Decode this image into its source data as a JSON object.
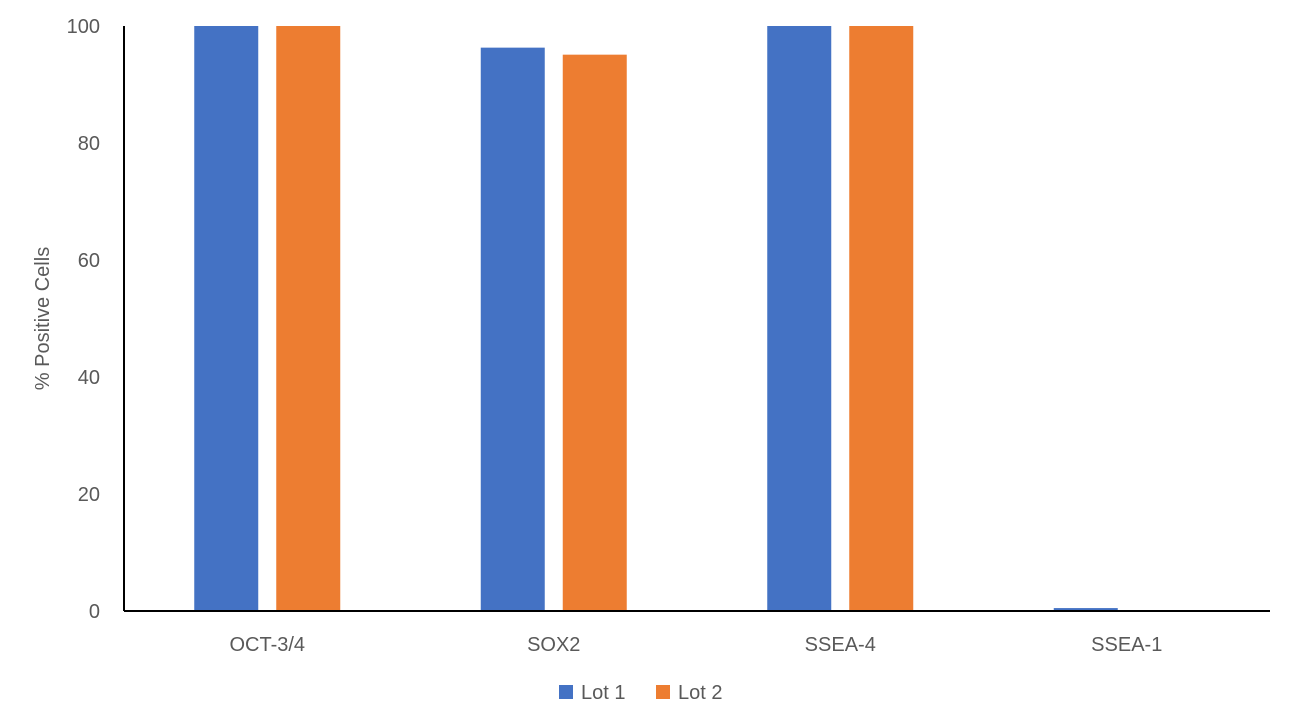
{
  "chart_data": {
    "type": "bar",
    "title": "",
    "xlabel": "",
    "ylabel": "% Positive Cells",
    "categories": [
      "OCT-3/4",
      "SOX2",
      "SSEA-4",
      "SSEA-1"
    ],
    "series": [
      {
        "name": "Lot 1",
        "color": "#4472C4",
        "values": [
          100,
          96.3,
          100,
          0.5
        ]
      },
      {
        "name": "Lot 2",
        "color": "#ED7D31",
        "values": [
          100,
          95.1,
          100,
          0
        ]
      }
    ],
    "ylim": [
      0,
      100
    ],
    "yticks": [
      0,
      20,
      40,
      60,
      80,
      100
    ],
    "grid": false,
    "legend_position": "bottom"
  }
}
